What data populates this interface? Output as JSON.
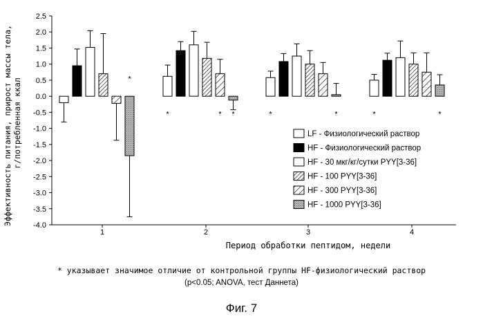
{
  "chart_data": {
    "type": "bar",
    "ylabel": "Эффективность питания, прирост массы тела, г/потребленная ккал",
    "xlabel": "Период обработки пептидом, недели",
    "ylim": [
      -4.0,
      2.5
    ],
    "y_ticks": [
      "2.5",
      "2.0",
      "1.5",
      "1.0",
      "0.5",
      "0.0",
      "-0.5",
      "-1.0",
      "-1.5",
      "-2.0",
      "-2.5",
      "-3.0",
      "-3.5",
      "-4.0"
    ],
    "categories": [
      "1",
      "2",
      "3",
      "4"
    ],
    "legend_position": "right",
    "series": [
      {
        "name": "LF - Физиологический раствор",
        "pattern": "white",
        "values": [
          -0.2,
          0.62,
          0.58,
          0.5
        ],
        "err": [
          0.6,
          0.35,
          0.2,
          0.18
        ]
      },
      {
        "name": "HF - Физиологический раствор",
        "pattern": "black",
        "values": [
          0.95,
          1.42,
          1.08,
          1.12
        ],
        "err": [
          0.52,
          0.28,
          0.25,
          0.22
        ]
      },
      {
        "name": "HF - 30 мкг/кг/сутки PYY[3-36]",
        "pattern": "white",
        "values": [
          1.52,
          1.6,
          1.25,
          1.2
        ],
        "err": [
          0.52,
          0.42,
          0.38,
          0.52
        ]
      },
      {
        "name": "HF - 100 PYY[3-36]",
        "pattern": "hatch-dense",
        "values": [
          0.7,
          1.18,
          1.0,
          1.0
        ],
        "err": [
          1.25,
          0.5,
          0.42,
          0.35
        ]
      },
      {
        "name": "HF - 300 PYY[3-36]",
        "pattern": "hatch",
        "values": [
          -0.22,
          0.7,
          0.7,
          0.75
        ],
        "err": [
          1.15,
          0.45,
          0.35,
          0.6
        ]
      },
      {
        "name": "HF - 1000 PYY[3-36]",
        "pattern": "gray",
        "values": [
          -1.85,
          -0.12,
          0.05,
          0.35
        ],
        "err": [
          1.9,
          0.3,
          0.35,
          0.32
        ]
      }
    ],
    "significance_marks": [
      {
        "category": "1",
        "series": "HF - 1000 PYY[3-36]",
        "label": "*"
      },
      {
        "category": "2",
        "series": "LF - Физиологический раствор",
        "label": "*"
      },
      {
        "category": "2",
        "series": "HF - 300 PYY[3-36]",
        "label": "*"
      },
      {
        "category": "2",
        "series": "HF - 1000 PYY[3-36]",
        "label": "*"
      },
      {
        "category": "3",
        "series": "LF - Физиологический раствор",
        "label": "*"
      },
      {
        "category": "3",
        "series": "HF - 1000 PYY[3-36]",
        "label": "*"
      },
      {
        "category": "4",
        "series": "LF - Физиологический раствор",
        "label": "*"
      },
      {
        "category": "4",
        "series": "HF - 1000 PYY[3-36]",
        "label": "*"
      }
    ]
  },
  "footnote": {
    "line1": "* указывает значимое отличие от контрольной группы HF-физиологический раствор",
    "line2": "(p<0.05; ANOVA, тест Даннета)"
  },
  "caption": "Фиг. 7"
}
